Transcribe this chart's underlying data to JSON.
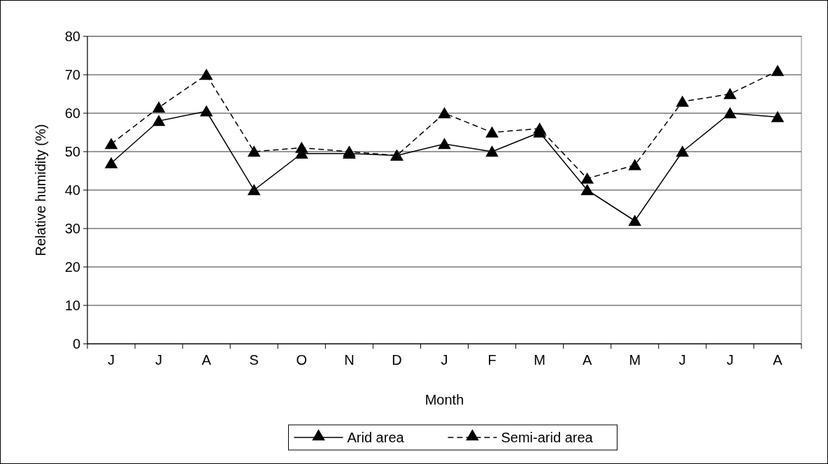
{
  "chart_data": {
    "type": "line",
    "xlabel": "Month",
    "ylabel": "Relative humidity (%)",
    "categories": [
      "J",
      "J",
      "A",
      "S",
      "O",
      "N",
      "D",
      "J",
      "F",
      "M",
      "A",
      "M",
      "J",
      "J",
      "A"
    ],
    "series": [
      {
        "name": "Arid area",
        "color": "#000000",
        "line_style": "solid",
        "values": [
          47,
          58,
          60.5,
          40,
          49.5,
          49.5,
          49,
          52,
          50,
          55,
          40,
          32,
          50,
          60,
          59
        ]
      },
      {
        "name": "Semi-arid area",
        "color": "#000000",
        "line_style": "dashed",
        "values": [
          52,
          61.5,
          70,
          50,
          51,
          50,
          49,
          60,
          55,
          56,
          43,
          46.5,
          63,
          65,
          71
        ]
      }
    ],
    "ylim": [
      0,
      80
    ],
    "yticks": [
      0,
      10,
      20,
      30,
      40,
      50,
      60,
      70,
      80
    ],
    "grid": "y",
    "legend": "bottom",
    "marker": "triangle"
  }
}
